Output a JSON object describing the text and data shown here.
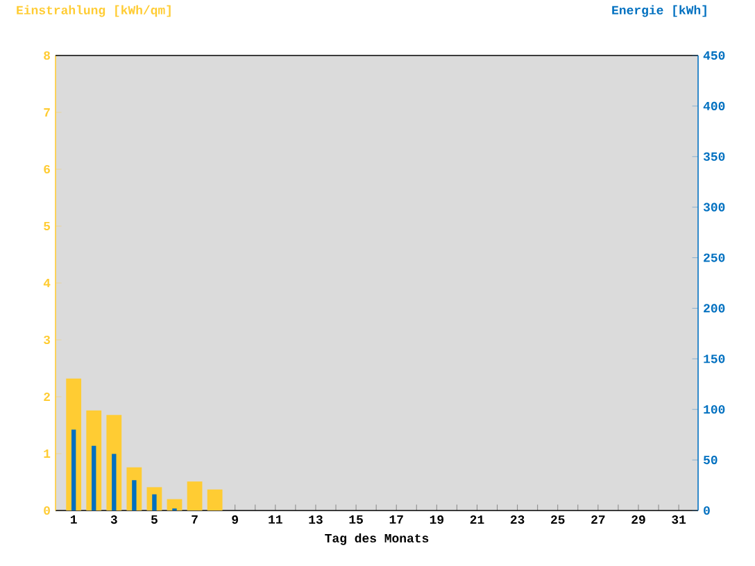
{
  "chart_data": {
    "type": "bar",
    "xlabel": "Tag des Monats",
    "ylabel": "Einstrahlung [kWh/qm]",
    "y2label": "Energie [kWh]",
    "categories": [
      "1",
      null,
      "3",
      null,
      "5",
      null,
      "7",
      null,
      "9",
      null,
      "11",
      null,
      "13",
      null,
      "15",
      null,
      "17",
      null,
      "19",
      null,
      "21",
      null,
      "23",
      null,
      "25",
      null,
      "27",
      null,
      "29",
      null,
      "31"
    ],
    "series": [
      {
        "color": "#ffcc33",
        "values": [
          2.32,
          1.76,
          1.68,
          0.76,
          0.41,
          0.2,
          0.51,
          0.37,
          null,
          null,
          null,
          null,
          null,
          null,
          null,
          null,
          null,
          null,
          null,
          null,
          null,
          null,
          null,
          null,
          null,
          null,
          null,
          null,
          null,
          null,
          null
        ]
      },
      {
        "color": "#0070c0",
        "axis": "y2",
        "values": [
          80,
          64,
          56,
          30,
          16,
          2,
          null,
          null,
          null,
          null,
          null,
          null,
          null,
          null,
          null,
          null,
          null,
          null,
          null,
          null,
          null,
          null,
          null,
          null,
          null,
          null,
          null,
          null,
          null,
          null,
          null
        ]
      }
    ],
    "ylim": [
      0,
      8
    ],
    "yticks": [
      0,
      1,
      2,
      3,
      4,
      5,
      6,
      7,
      8
    ],
    "y2lim": [
      0,
      450
    ],
    "y2ticks": [
      0,
      50,
      100,
      150,
      200,
      250,
      300,
      350,
      400,
      450
    ]
  }
}
